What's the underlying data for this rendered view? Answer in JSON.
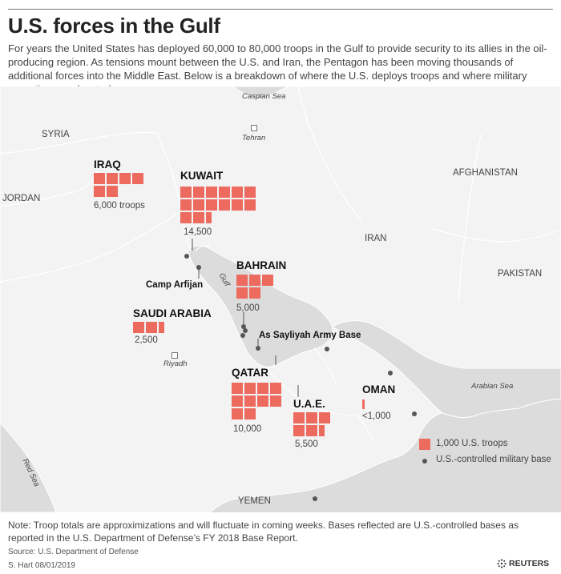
{
  "header": {
    "title": "U.S. forces in the Gulf",
    "intro": "For years the United States has deployed 60,000 to 80,000 troops in the Gulf to provide security to its allies in the oil-producing region. As tensions mount between the U.S. and Iran, the Pentagon has been moving thousands of additional forces into the Middle East. Below is a breakdown of where the U.S. deploys troops and where military operations are located."
  },
  "map": {
    "countries": {
      "syria": "SYRIA",
      "jordan": "JORDAN",
      "afghanistan": "AFGHANISTAN",
      "iran": "IRAN",
      "pakistan": "PAKISTAN",
      "yemen": "YEMEN"
    },
    "water": {
      "caspian": "Caspian Sea",
      "gulf": "Gulf",
      "arabian": "Arabian Sea",
      "red": "Red Sea"
    },
    "cities": {
      "tehran": "Tehran",
      "riyadh": "Riyadh"
    },
    "bases": {
      "camp_arifjan": "Camp Arfijan",
      "as_sayliyah": "As Sayliyah Army Base"
    },
    "deployments": {
      "iraq": {
        "name": "IRAQ",
        "troops_label": "6,000 troops",
        "troops": 6000
      },
      "kuwait": {
        "name": "KUWAIT",
        "troops_label": "14,500",
        "troops": 14500
      },
      "bahrain": {
        "name": "BAHRAIN",
        "troops_label": "5,000",
        "troops": 5000
      },
      "saudi": {
        "name": "SAUDI ARABIA",
        "troops_label": "2,500",
        "troops": 2500
      },
      "qatar": {
        "name": "QATAR",
        "troops_label": "10,000",
        "troops": 10000
      },
      "uae": {
        "name": "U.A.E.",
        "troops_label": "5,500",
        "troops": 5500
      },
      "oman": {
        "name": "OMAN",
        "troops_label": "<1,000",
        "troops": 100
      }
    },
    "colors": {
      "troop_square": "#ec6a5e",
      "base_dot": "#555555",
      "land": "#f3f3f3",
      "sea": "#dcdcdc",
      "border": "#ffffff"
    }
  },
  "legend": {
    "troops_label": "1,000 U.S. troops",
    "base_label": "U.S.-controlled military base"
  },
  "footer": {
    "note": "Note: Troop totals are approximizations and will fluctuate in coming weeks. Bases reflected are U.S.-controlled bases as reported in the U.S. Department of Defense’s FY 2018 Base Report.",
    "source": "Source: U.S. Department of Defense",
    "byline": "S. Hart 08/01/2019",
    "brand": "REUTERS"
  }
}
